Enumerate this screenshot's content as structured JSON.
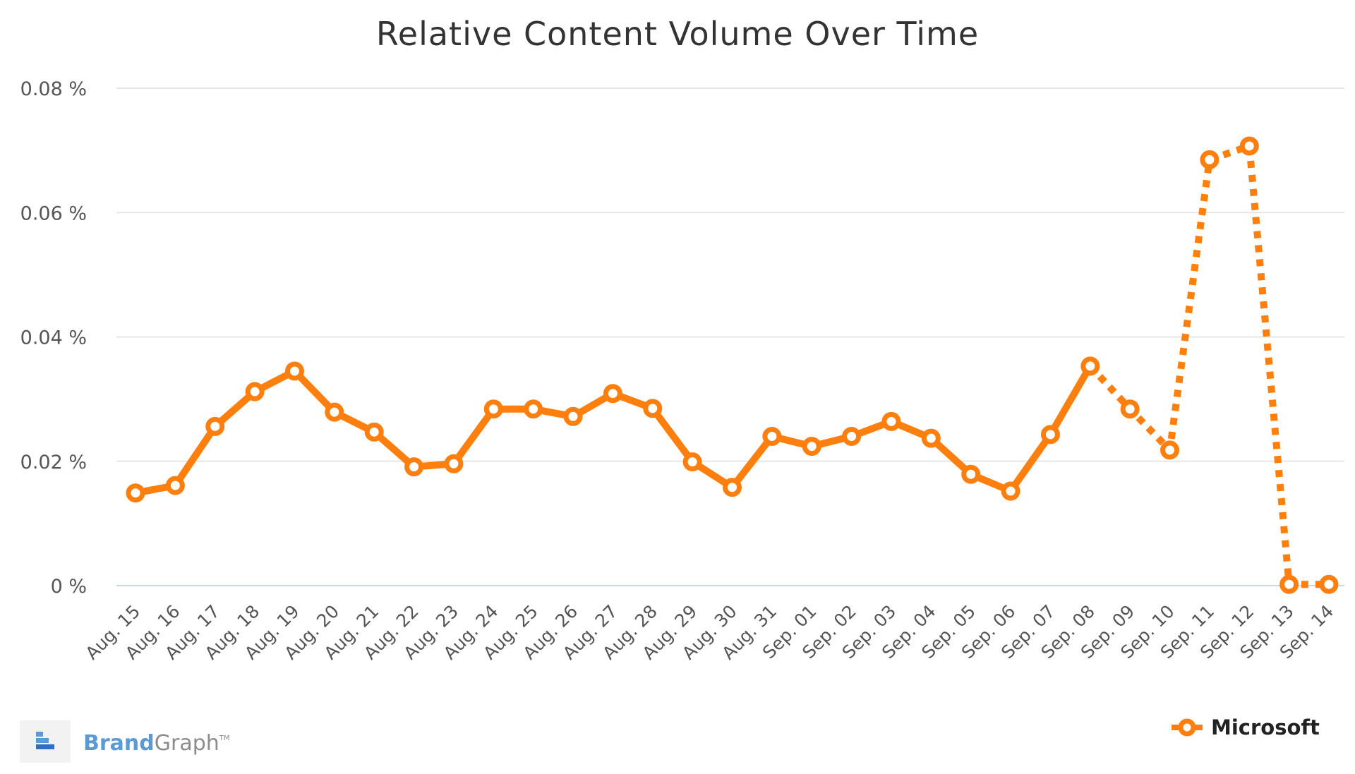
{
  "chart_data": {
    "type": "line",
    "title": "Relative Content Volume Over Time",
    "y_unit": "%",
    "ylim": [
      0,
      0.08
    ],
    "y_ticks": [
      "0 %",
      "0.02 %",
      "0.04 %",
      "0.06 %",
      "0.08 %"
    ],
    "grid": true,
    "legend_position": "bottom-right",
    "categories": [
      "Aug. 15",
      "Aug. 16",
      "Aug. 17",
      "Aug. 18",
      "Aug. 19",
      "Aug. 20",
      "Aug. 21",
      "Aug. 22",
      "Aug. 23",
      "Aug. 24",
      "Aug. 25",
      "Aug. 26",
      "Aug. 27",
      "Aug. 28",
      "Aug. 29",
      "Aug. 30",
      "Aug. 31",
      "Sep. 01",
      "Sep. 02",
      "Sep. 03",
      "Sep. 04",
      "Sep. 05",
      "Sep. 06",
      "Sep. 07",
      "Sep. 08",
      "Sep. 09",
      "Sep. 10",
      "Sep. 11",
      "Sep. 12",
      "Sep. 13",
      "Sep. 14"
    ],
    "series": [
      {
        "name": "Microsoft",
        "color": "#ff7f0e",
        "values": [
          0.0149,
          0.0161,
          0.0256,
          0.0312,
          0.0345,
          0.0279,
          0.0247,
          0.0191,
          0.0196,
          0.0284,
          0.0284,
          0.0272,
          0.0309,
          0.0285,
          0.0199,
          0.0158,
          0.024,
          0.0224,
          0.024,
          0.0264,
          0.0237,
          0.0179,
          0.0152,
          0.0243,
          0.0353,
          0.0284,
          0.0218,
          0.0685,
          0.0707,
          0.0002,
          0.0002
        ],
        "dashed_from_index": 24
      }
    ]
  },
  "branding": {
    "brand_part": "Brand",
    "graph_part": "Graph",
    "trademark": "TM",
    "icon": "brandgraph-logo-icon"
  },
  "colors": {
    "series": "#ff7f0e",
    "grid": "#e6e6e6",
    "axis": "#ccd6eb",
    "brand_blue": "#5b9bd5"
  }
}
